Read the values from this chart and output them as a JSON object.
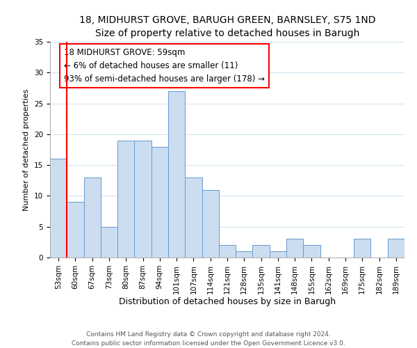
{
  "title": "18, MIDHURST GROVE, BARUGH GREEN, BARNSLEY, S75 1ND",
  "subtitle": "Size of property relative to detached houses in Barugh",
  "xlabel": "Distribution of detached houses by size in Barugh",
  "ylabel": "Number of detached properties",
  "bar_labels": [
    "53sqm",
    "60sqm",
    "67sqm",
    "73sqm",
    "80sqm",
    "87sqm",
    "94sqm",
    "101sqm",
    "107sqm",
    "114sqm",
    "121sqm",
    "128sqm",
    "135sqm",
    "141sqm",
    "148sqm",
    "155sqm",
    "162sqm",
    "169sqm",
    "175sqm",
    "182sqm",
    "189sqm"
  ],
  "bar_values": [
    16,
    9,
    13,
    5,
    19,
    19,
    18,
    27,
    13,
    11,
    2,
    1,
    2,
    1,
    3,
    2,
    0,
    0,
    3,
    0,
    3
  ],
  "bar_color": "#ccddf0",
  "bar_edge_color": "#6699cc",
  "annotation_box_text": "18 MIDHURST GROVE: 59sqm\n← 6% of detached houses are smaller (11)\n93% of semi-detached houses are larger (178) →",
  "annotation_box_facecolor": "white",
  "annotation_box_edgecolor": "red",
  "vline_color": "red",
  "ylim": [
    0,
    35
  ],
  "yticks": [
    0,
    5,
    10,
    15,
    20,
    25,
    30,
    35
  ],
  "footer_line1": "Contains HM Land Registry data © Crown copyright and database right 2024.",
  "footer_line2": "Contains public sector information licensed under the Open Government Licence v3.0.",
  "title_fontsize": 10,
  "subtitle_fontsize": 9,
  "xlabel_fontsize": 9,
  "ylabel_fontsize": 8,
  "tick_fontsize": 7.5,
  "annotation_fontsize": 8.5,
  "footer_fontsize": 6.5
}
